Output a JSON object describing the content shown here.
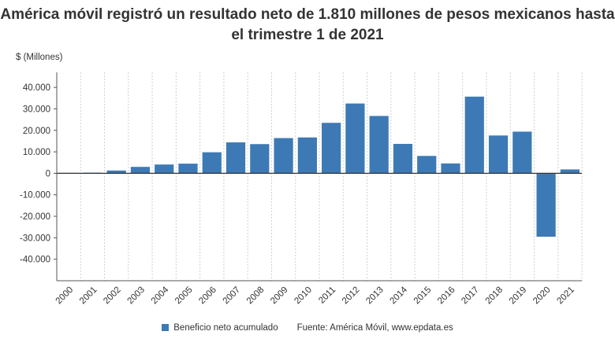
{
  "chart_data": {
    "type": "bar",
    "title": "América móvil registró un resultado neto de 1.810 millones de pesos mexicanos hasta el trimestre 1 de 2021",
    "ylabel": "$ (Millones)",
    "xlabel": "",
    "categories": [
      "2000",
      "2001",
      "2002",
      "2003",
      "2004",
      "2005",
      "2006",
      "2007",
      "2008",
      "2009",
      "2010",
      "2011",
      "2012",
      "2013",
      "2014",
      "2015",
      "2016",
      "2017",
      "2018",
      "2019",
      "2020",
      "2021"
    ],
    "series": [
      {
        "name": "Beneficio neto acumulado",
        "values": [
          200,
          300,
          1300,
          3000,
          4100,
          4500,
          9800,
          14400,
          13600,
          16400,
          16700,
          23500,
          32500,
          26700,
          13700,
          8100,
          4600,
          35700,
          17600,
          19400,
          -29500,
          1810
        ]
      }
    ],
    "yticks": [
      "40.000",
      "30.000",
      "20.000",
      "10.000",
      "0",
      "-10.000",
      "-20.000",
      "-30.000",
      "-40.000"
    ],
    "ytick_values": [
      40000,
      30000,
      20000,
      10000,
      0,
      -10000,
      -20000,
      -30000,
      -40000
    ],
    "ylim": [
      -50000,
      47000
    ],
    "grid": "vertical-dashed",
    "legend_position": "bottom",
    "bar_color": "#3d7ab5",
    "source": "Fuente: América Móvil, www.epdata.es"
  }
}
